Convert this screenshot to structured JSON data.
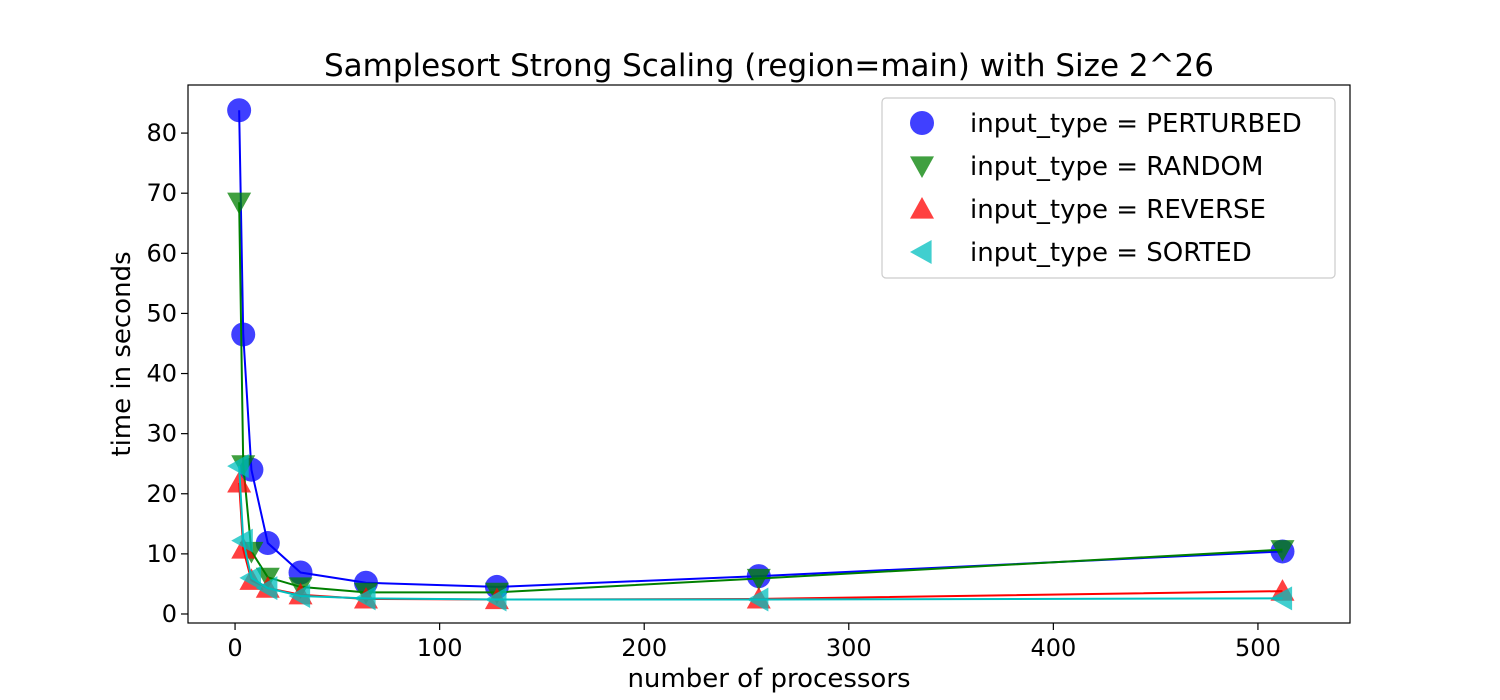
{
  "chart_data": {
    "type": "line",
    "title": "Samplesort Strong Scaling (region=main) with Size 2^26",
    "xlabel": "number of processors",
    "ylabel": "time in seconds",
    "xlim": [
      -23,
      545
    ],
    "ylim": [
      -1.5,
      88
    ],
    "xticks": [
      0,
      100,
      200,
      300,
      400,
      500
    ],
    "yticks": [
      0,
      10,
      20,
      30,
      40,
      50,
      60,
      70,
      80
    ],
    "grid": false,
    "legend_position": "top-right",
    "x": [
      2,
      4,
      8,
      16,
      32,
      64,
      128,
      256,
      512
    ],
    "series": [
      {
        "name": "input_type = PERTURBED",
        "marker": "circle",
        "color": "#0000ff",
        "values": [
          83.8,
          46.5,
          24.0,
          11.8,
          6.9,
          5.2,
          4.5,
          6.3,
          10.4
        ]
      },
      {
        "name": "input_type = RANDOM",
        "marker": "triangle-down",
        "color": "#008000",
        "values": [
          68.5,
          24.8,
          10.4,
          6.1,
          4.5,
          3.6,
          3.6,
          5.9,
          10.7
        ]
      },
      {
        "name": "input_type = REVERSE",
        "marker": "triangle-up",
        "color": "#ff0000",
        "values": [
          21.8,
          10.8,
          5.6,
          4.3,
          3.2,
          2.5,
          2.4,
          2.5,
          3.8
        ]
      },
      {
        "name": "input_type = SORTED",
        "marker": "triangle-left",
        "color": "#00bfbf",
        "values": [
          24.6,
          12.2,
          6.0,
          4.3,
          3.0,
          2.6,
          2.4,
          2.4,
          2.6
        ]
      }
    ]
  }
}
